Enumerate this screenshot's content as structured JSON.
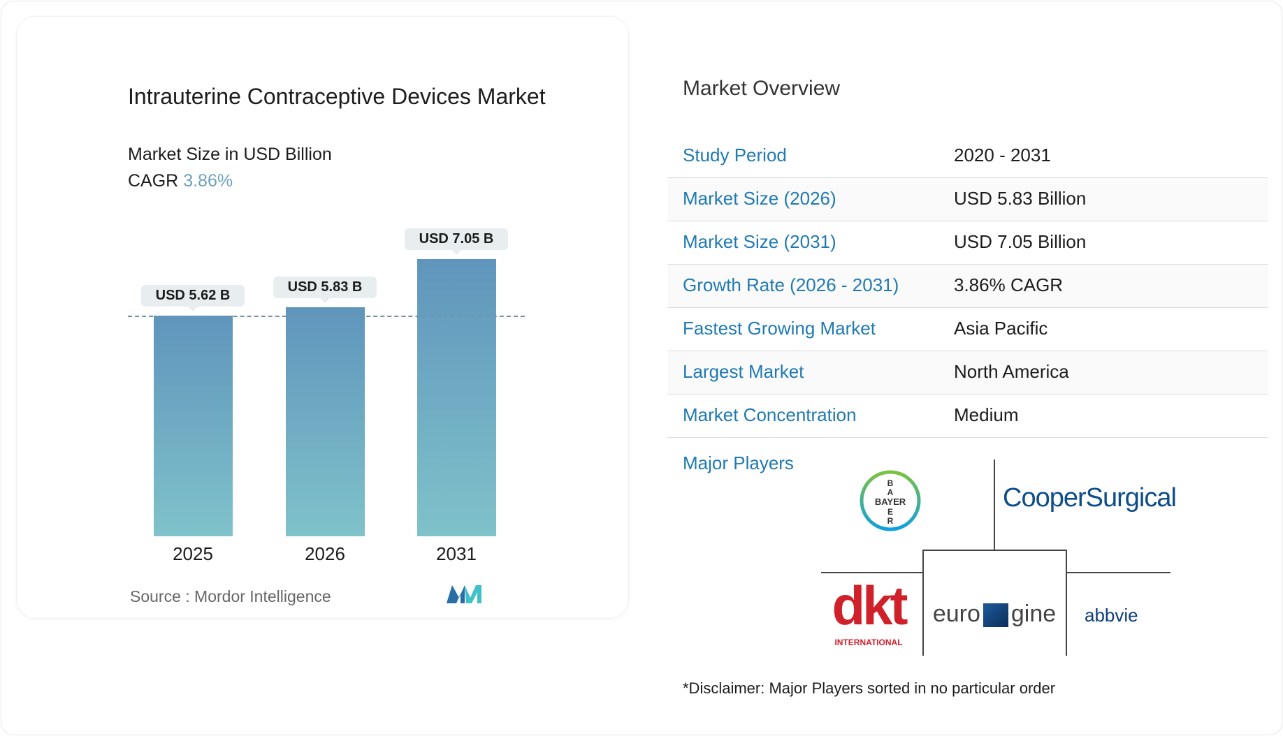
{
  "title": "Intrauterine Contraceptive Devices Market",
  "subtitle": "Market Size in USD Billion",
  "cagr_label": "CAGR",
  "cagr_value": "3.86%",
  "source": "Source :  Mordor Intelligence",
  "chart_data": {
    "type": "bar",
    "categories": [
      "2025",
      "2026",
      "2031"
    ],
    "values": [
      5.62,
      5.83,
      7.05
    ],
    "data_labels": [
      "USD 5.62 B",
      "USD 5.83 B",
      "USD 7.05 B"
    ],
    "ylim": [
      0,
      7.05
    ],
    "reference_line": 5.62,
    "colors": {
      "top": "#5f95bc",
      "bottom": "#7fc2ca"
    }
  },
  "overview": {
    "title": "Market Overview",
    "rows": [
      {
        "key": "Study Period",
        "value": "2020 - 2031"
      },
      {
        "key": "Market Size (2026)",
        "value": "USD 5.83 Billion"
      },
      {
        "key": "Market Size (2031)",
        "value": "USD 7.05 Billion"
      },
      {
        "key": "Growth Rate (2026 - 2031)",
        "value": "3.86% CAGR"
      },
      {
        "key": "Fastest Growing Market",
        "value": "Asia Pacific"
      },
      {
        "key": "Largest Market",
        "value": "North America"
      },
      {
        "key": "Market Concentration",
        "value": "Medium"
      }
    ],
    "major_players_label": "Major Players",
    "players": [
      "BAYER",
      "CooperSurgical",
      "dkt INTERNATIONAL",
      "eurogine",
      "abbvie"
    ],
    "disclaimer": "*Disclaimer: Major Players sorted in no particular order"
  }
}
